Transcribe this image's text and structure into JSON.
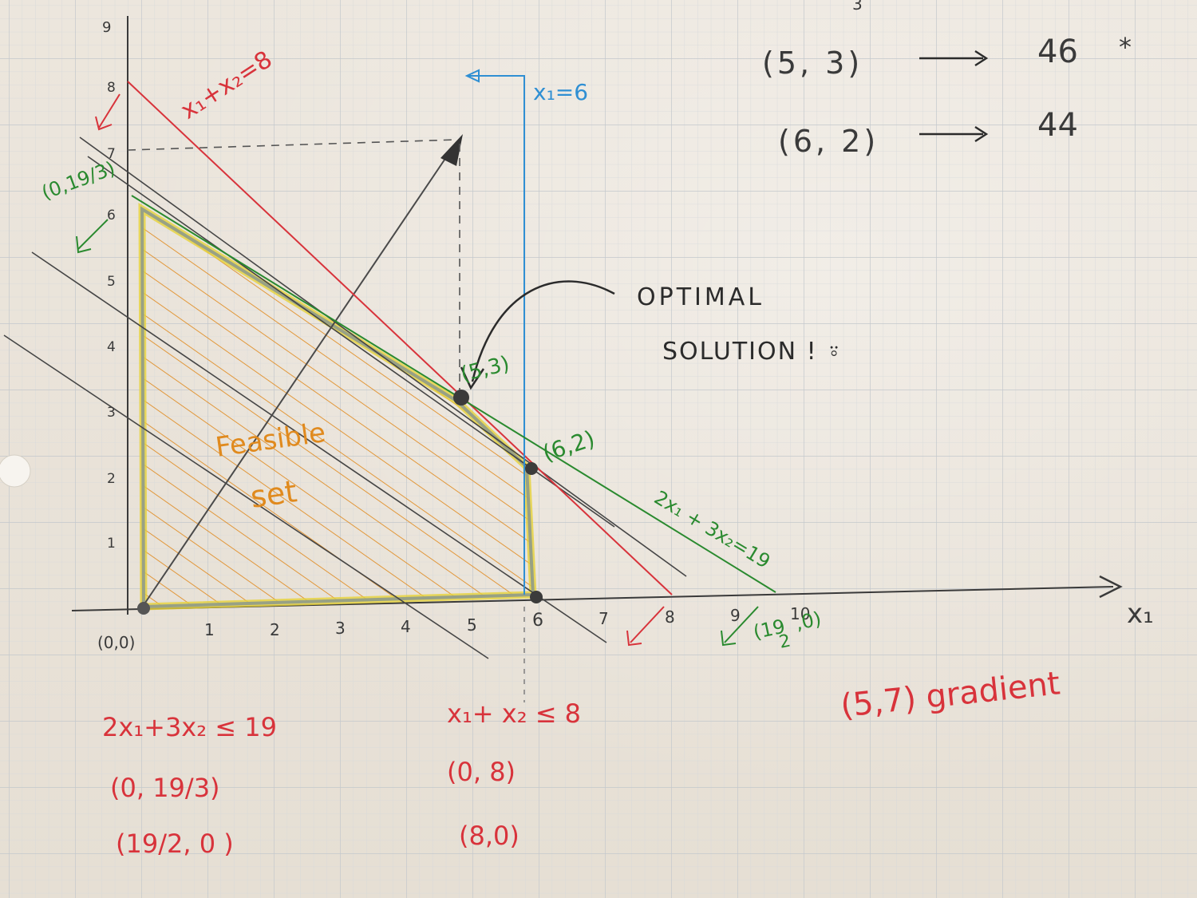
{
  "axes": {
    "x_label": "x₁",
    "y_top_tick": "9",
    "origin_label": "(0,0)",
    "x_ticks": [
      "1",
      "2",
      "3",
      "4",
      "5",
      "6",
      "7",
      "8",
      "9",
      "10"
    ],
    "y_ticks": [
      "1",
      "2",
      "3",
      "4",
      "5",
      "6",
      "7",
      "8"
    ]
  },
  "constraints": {
    "red_line_label": "x₁+x₂=8",
    "blue_line_label": "x₁=6",
    "green_line_label": "2x₁ + 3x₂=19"
  },
  "points": {
    "green_intercept_y": "(0,19/3)",
    "optimal_point": "(5,3)",
    "vertex_62": "(6,2)",
    "green_intercept_x_num": "(19",
    "green_intercept_x_den": "2",
    "green_intercept_x_zero": ",0)"
  },
  "region": {
    "label_1": "Feasible",
    "label_2": "set"
  },
  "annotation": {
    "line1": "OPTIMAL",
    "line2": "SOLUTION ! ⍤"
  },
  "objective_values": [
    {
      "point": "(5, 3)",
      "value": "46",
      "mark": "*"
    },
    {
      "point": "(6, 2)",
      "value": "44",
      "mark": ""
    }
  ],
  "top_fragment": "3",
  "gradient": "(5,7) gradient",
  "notes_left": {
    "inequality": "2x₁+3x₂ ≤ 19",
    "p1": "(0, 19/3)",
    "p2": "(19/2, 0 )"
  },
  "notes_mid": {
    "inequality": "x₁+ x₂ ≤ 8",
    "p1": "(0, 8)",
    "p2": "(8,0)"
  },
  "colors": {
    "red": "#d8333b",
    "blue": "#2f8fd3",
    "green": "#2a8a2f",
    "orange": "#e08a1e",
    "yellow": "#e6d23a",
    "ink": "#2b2b2b",
    "grid": "#cfd3d6"
  }
}
